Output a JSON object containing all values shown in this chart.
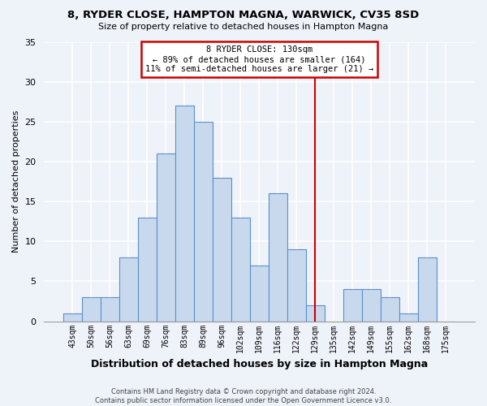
{
  "title1": "8, RYDER CLOSE, HAMPTON MAGNA, WARWICK, CV35 8SD",
  "title2": "Size of property relative to detached houses in Hampton Magna",
  "xlabel": "Distribution of detached houses by size in Hampton Magna",
  "ylabel": "Number of detached properties",
  "bins": [
    "43sqm",
    "50sqm",
    "56sqm",
    "63sqm",
    "69sqm",
    "76sqm",
    "83sqm",
    "89sqm",
    "96sqm",
    "102sqm",
    "109sqm",
    "116sqm",
    "122sqm",
    "129sqm",
    "135sqm",
    "142sqm",
    "149sqm",
    "155sqm",
    "162sqm",
    "168sqm",
    "175sqm"
  ],
  "values": [
    1,
    3,
    3,
    8,
    13,
    21,
    27,
    25,
    18,
    13,
    7,
    16,
    9,
    2,
    0,
    4,
    4,
    3,
    1,
    8,
    0
  ],
  "bar_color": "#c8d9ee",
  "bar_edge_color": "#5b8fc9",
  "vline_x_index": 13,
  "vline_color": "#cc0000",
  "annotation_title": "8 RYDER CLOSE: 130sqm",
  "annotation_line1": "← 89% of detached houses are smaller (164)",
  "annotation_line2": "11% of semi-detached houses are larger (21) →",
  "annotation_box_color": "#ffffff",
  "annotation_box_edge": "#cc0000",
  "ylim": [
    0,
    35
  ],
  "yticks": [
    0,
    5,
    10,
    15,
    20,
    25,
    30,
    35
  ],
  "footer1": "Contains HM Land Registry data © Crown copyright and database right 2024.",
  "footer2": "Contains public sector information licensed under the Open Government Licence v3.0.",
  "background_color": "#eef2f9"
}
